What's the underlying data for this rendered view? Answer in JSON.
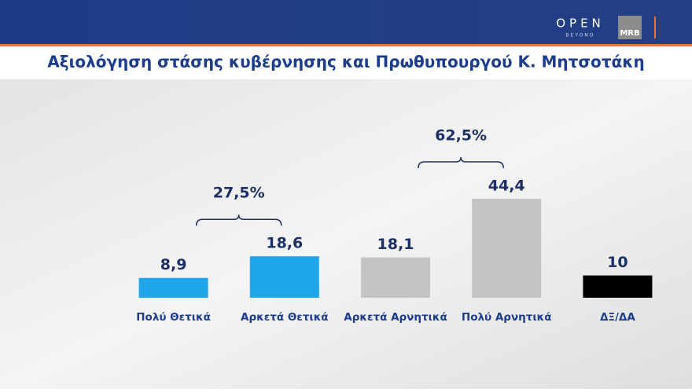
{
  "logo": {
    "brand": "OPEN",
    "tagline": "BEYOND",
    "partner": "MRB"
  },
  "chart_data": {
    "type": "bar",
    "title": "Αξιολόγηση στάσης κυβέρνησης και Πρωθυπουργού Κ. Μητσοτάκη",
    "categories": [
      "Πολύ Θετικά",
      "Αρκετά Θετικά",
      "Αρκετά Αρνητικά",
      "Πολύ Αρνητικά",
      "ΔΞ/ΔΑ"
    ],
    "values": [
      8.9,
      18.6,
      18.1,
      44.4,
      10
    ],
    "value_labels": [
      "8,9",
      "18,6",
      "18,1",
      "44,4",
      "10"
    ],
    "colors": [
      "#1ea5ea",
      "#1ea5ea",
      "#c4c4c4",
      "#c4c4c4",
      "#000000"
    ],
    "annotations": [
      {
        "value": 27.5,
        "label": "27,5%"
      },
      {
        "value": 62.5,
        "label": "62,5%"
      }
    ]
  }
}
